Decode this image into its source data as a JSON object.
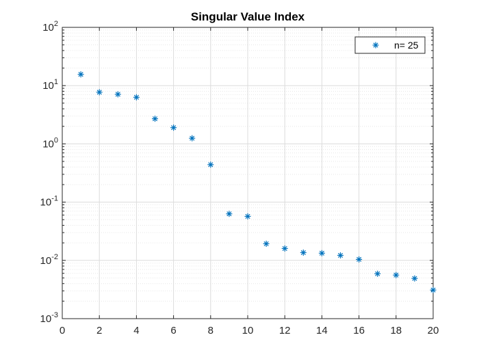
{
  "chart_data": {
    "type": "scatter",
    "title": "Singular Value Index",
    "xlabel": "",
    "ylabel": "",
    "x_scale": "linear",
    "y_scale": "log",
    "xlim": [
      0,
      20
    ],
    "ylim": [
      0.001,
      100
    ],
    "grid": true,
    "minor_grid": true,
    "legend_position": "top-right",
    "marker": "asterisk",
    "colors": {
      "series": "#0072BD",
      "grid": "#e6e6e6",
      "axis": "#262626"
    },
    "x_ticks": [
      "0",
      "2",
      "4",
      "6",
      "8",
      "10",
      "12",
      "14",
      "16",
      "18",
      "20"
    ],
    "y_ticks": [
      {
        "base": "10",
        "exp": "-3"
      },
      {
        "base": "10",
        "exp": "-2"
      },
      {
        "base": "10",
        "exp": "-1"
      },
      {
        "base": "10",
        "exp": "0"
      },
      {
        "base": "10",
        "exp": "1"
      },
      {
        "base": "10",
        "exp": "2"
      }
    ],
    "series": [
      {
        "name": "n= 25",
        "x": [
          1,
          2,
          3,
          4,
          5,
          6,
          7,
          8,
          9,
          10,
          11,
          12,
          13,
          14,
          15,
          16,
          17,
          18,
          19,
          20
        ],
        "y": [
          15.6,
          7.7,
          7.1,
          6.3,
          2.7,
          1.9,
          1.25,
          0.44,
          0.063,
          0.057,
          0.0193,
          0.016,
          0.0136,
          0.0133,
          0.0122,
          0.0104,
          0.0059,
          0.0056,
          0.0049,
          0.0031
        ]
      }
    ]
  }
}
